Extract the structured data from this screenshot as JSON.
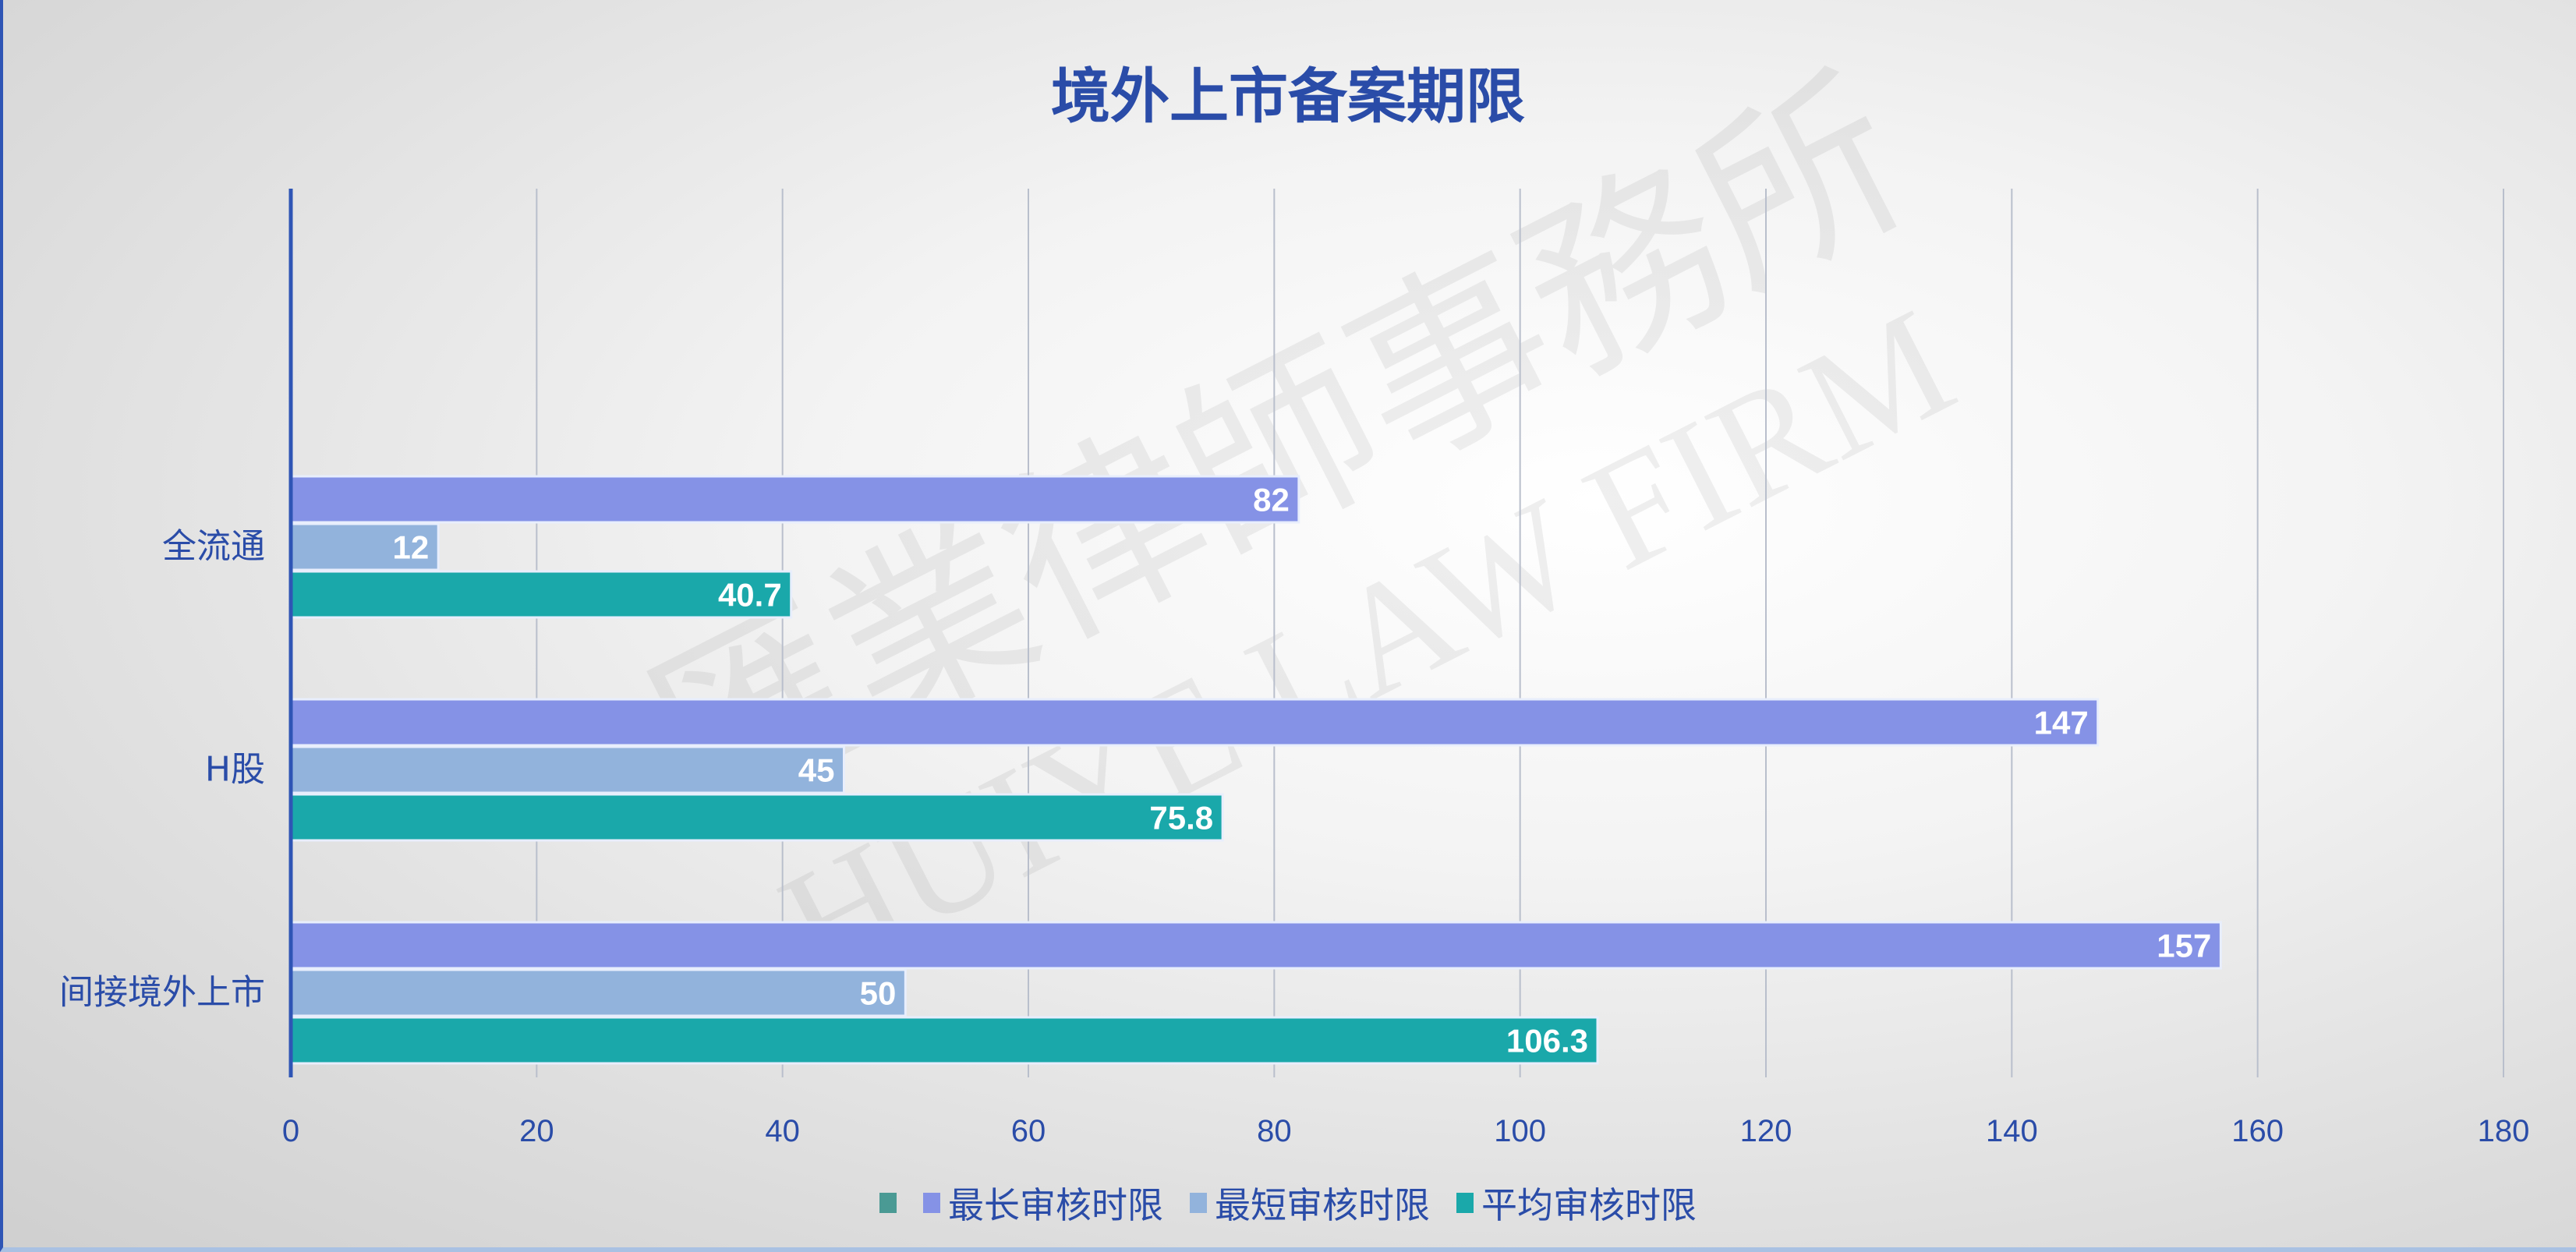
{
  "chart_data": {
    "type": "bar",
    "orientation": "horizontal",
    "title": "境外上市备案期限",
    "categories": [
      "全流通",
      "H股",
      "间接境外上市"
    ],
    "series": [
      {
        "name": "最长审核时限",
        "color": "#8592e6",
        "values": [
          82,
          147,
          157
        ]
      },
      {
        "name": "最短审核时限",
        "color": "#92b3dc",
        "values": [
          12,
          45,
          50
        ]
      },
      {
        "name": "平均审核时限",
        "color": "#1aa8aa",
        "values": [
          40.7,
          75.8,
          106.3
        ]
      }
    ],
    "xlim": [
      0,
      180
    ],
    "xticks": [
      "0",
      "20",
      "40",
      "60",
      "80",
      "100",
      "120",
      "140",
      "160",
      "180"
    ],
    "grid": true,
    "legend_position": "bottom",
    "legend_extra_marker_color": "#4a9a94",
    "xlabel": "",
    "ylabel": ""
  },
  "watermark": {
    "cn": "匯業律師事務所",
    "en": "HUIYE LAW FIRM"
  }
}
